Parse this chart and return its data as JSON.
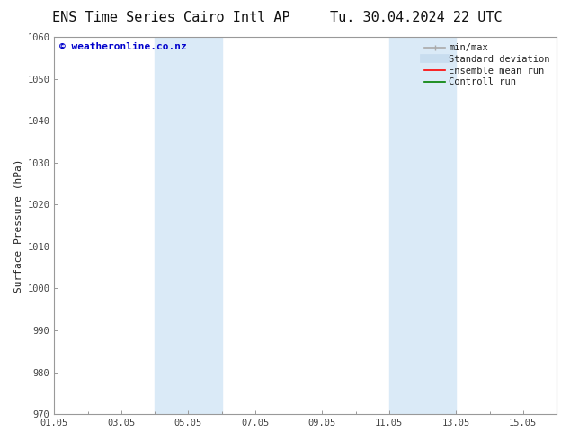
{
  "title_left": "ENS Time Series Cairo Intl AP",
  "title_right": "Tu. 30.04.2024 22 UTC",
  "ylabel": "Surface Pressure (hPa)",
  "ylim": [
    970,
    1060
  ],
  "yticks": [
    970,
    980,
    990,
    1000,
    1010,
    1020,
    1030,
    1040,
    1050,
    1060
  ],
  "xlim_start": 1.0,
  "xlim_end": 16.0,
  "xtick_positions": [
    1,
    3,
    5,
    7,
    9,
    11,
    13,
    15
  ],
  "xtick_labels": [
    "01.05",
    "03.05",
    "05.05",
    "07.05",
    "09.05",
    "11.05",
    "13.05",
    "15.05"
  ],
  "minor_xtick_positions": [
    2,
    4,
    6,
    8,
    10,
    12,
    14,
    16
  ],
  "shaded_regions": [
    {
      "start_day": 4.0,
      "end_day": 6.0
    },
    {
      "start_day": 11.0,
      "end_day": 13.0
    }
  ],
  "shaded_color": "#daeaf7",
  "watermark_text": "© weatheronline.co.nz",
  "watermark_color": "#0000cc",
  "watermark_fontsize": 8,
  "legend_entries": [
    {
      "label": "min/max",
      "color": "#aaaaaa",
      "lw": 1.2,
      "ls": "-",
      "type": "minmax"
    },
    {
      "label": "Standard deviation",
      "color": "#c8ddef",
      "lw": 7,
      "ls": "-",
      "type": "line"
    },
    {
      "label": "Ensemble mean run",
      "color": "#ff0000",
      "lw": 1.2,
      "ls": "-",
      "type": "line"
    },
    {
      "label": "Controll run",
      "color": "#008000",
      "lw": 1.2,
      "ls": "-",
      "type": "line"
    }
  ],
  "bg_color": "#ffffff",
  "spine_color": "#999999",
  "tick_color": "#444444",
  "title_fontsize": 11,
  "ylabel_fontsize": 8,
  "tick_fontsize": 7.5,
  "legend_fontsize": 7.5
}
